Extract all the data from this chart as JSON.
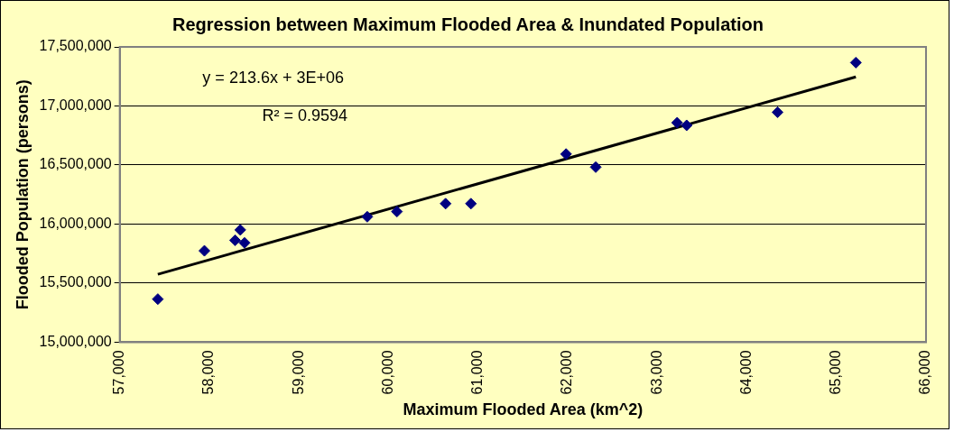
{
  "chart_data": {
    "type": "scatter",
    "title": "Regression between Maximum Flooded Area & Inundated Population",
    "xlabel": "Maximum Flooded Area (km^2)",
    "ylabel": "Flooded Population (persons)",
    "x": [
      57425,
      57945,
      58287,
      58346,
      58393,
      59763,
      60094,
      60637,
      60920,
      61982,
      62313,
      63222,
      63328,
      64343,
      65217
    ],
    "series": [
      {
        "color": "#000080",
        "values": [
          15365000,
          15774000,
          15863000,
          15951000,
          15841000,
          16062000,
          16106000,
          16173000,
          16173000,
          16593000,
          16482000,
          16858000,
          16836000,
          16947000,
          17367000
        ]
      },
      {
        "type": "line",
        "marker": "none",
        "color": "#000000",
        "x": [
          57425,
          65217
        ],
        "values": [
          15575000,
          17246000
        ]
      }
    ],
    "xlim": [
      57000,
      66000
    ],
    "xticks": [
      {
        "value": 57000,
        "label": "57,000"
      },
      {
        "value": 58000,
        "label": "58,000"
      },
      {
        "value": 59000,
        "label": "59,000"
      },
      {
        "value": 60000,
        "label": "60,000"
      },
      {
        "value": 61000,
        "label": "61,000"
      },
      {
        "value": 62000,
        "label": "62,000"
      },
      {
        "value": 63000,
        "label": "63,000"
      },
      {
        "value": 64000,
        "label": "64,000"
      },
      {
        "value": 65000,
        "label": "65,000"
      },
      {
        "value": 66000,
        "label": "66,000"
      }
    ],
    "ylim": [
      15000000,
      17500000
    ],
    "yticks": [
      {
        "value": 15000000,
        "label": "15,000,000"
      },
      {
        "value": 15500000,
        "label": "15,500,000"
      },
      {
        "value": 16000000,
        "label": "16,000,000"
      },
      {
        "value": 16500000,
        "label": "16,500,000"
      },
      {
        "value": 17000000,
        "label": "17,000,000"
      },
      {
        "value": 17500000,
        "label": "17,500,000"
      }
    ],
    "grid": "y",
    "legend": false,
    "marker": "diamond",
    "annotations": [
      "y = 213.6x + 3E+06",
      "R² = 0.9594"
    ]
  }
}
